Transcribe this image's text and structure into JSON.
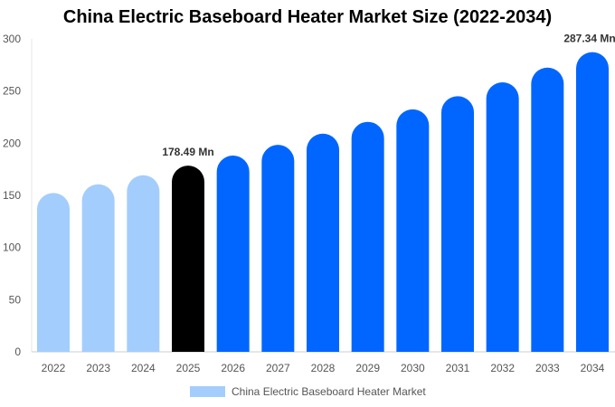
{
  "chart_data": {
    "type": "bar",
    "title": "China Electric Baseboard Heater Market Size (2022-2034)",
    "categories": [
      "2022",
      "2023",
      "2024",
      "2025",
      "2026",
      "2027",
      "2028",
      "2029",
      "2030",
      "2031",
      "2032",
      "2033",
      "2034"
    ],
    "series": [
      {
        "name": "China Electric Baseboard Heater Market",
        "values": [
          152.3,
          160.6,
          169.3,
          178.49,
          188.2,
          198.4,
          209.2,
          220.5,
          232.5,
          245.1,
          258.4,
          272.5,
          287.34
        ]
      }
    ],
    "data_labels": {
      "2025": "178.49 Mn",
      "2034": "287.34 Mn"
    },
    "ylim": [
      0,
      300
    ],
    "yticks": [
      0,
      50,
      100,
      150,
      200,
      250,
      300
    ],
    "grid": false,
    "legend": "bottom",
    "colors": {
      "historical": "#a3cdfc",
      "base_year": "#000000",
      "forecast": "#0066ff"
    }
  }
}
